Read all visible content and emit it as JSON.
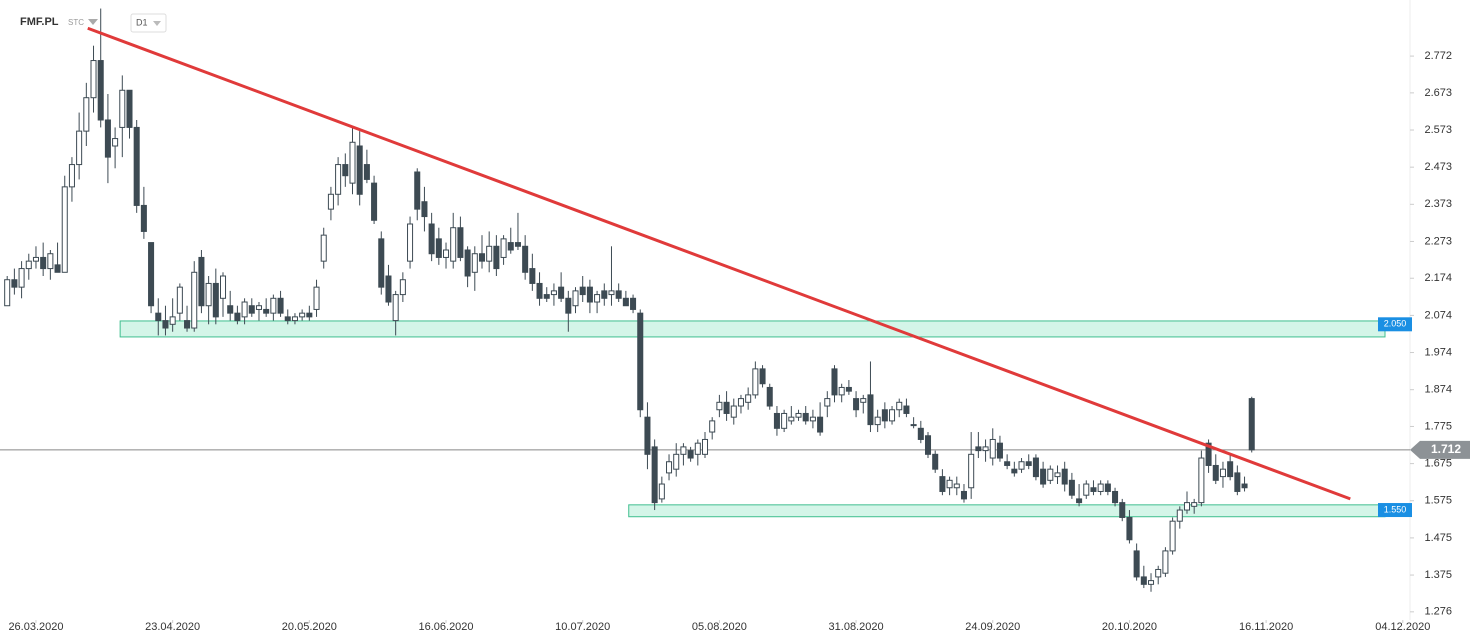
{
  "header": {
    "symbol": "FMF.PL",
    "mode": "STC",
    "interval": "D1"
  },
  "chart_data": {
    "type": "candlestick",
    "grid": false,
    "up_color": "#ffffff",
    "down_color": "#3d4a53",
    "wick_color": "#3d4a53",
    "xlim": [
      -1,
      195
    ],
    "ylim": [
      1.254,
      2.923
    ],
    "xticks": [
      {
        "value": 4,
        "label": "26.03.2020"
      },
      {
        "value": 23,
        "label": "23.04.2020"
      },
      {
        "value": 42,
        "label": "20.05.2020"
      },
      {
        "value": 61,
        "label": "16.06.2020"
      },
      {
        "value": 80,
        "label": "10.07.2020"
      },
      {
        "value": 99,
        "label": "05.08.2020"
      },
      {
        "value": 118,
        "label": "31.08.2020"
      },
      {
        "value": 137,
        "label": "24.09.2020"
      },
      {
        "value": 156,
        "label": "20.10.2020"
      },
      {
        "value": 175,
        "label": "16.11.2020"
      },
      {
        "value": 194,
        "label": "04.12.2020"
      }
    ],
    "yticks": [
      2.772,
      2.673,
      2.573,
      2.473,
      2.373,
      2.273,
      2.174,
      2.074,
      1.974,
      1.874,
      1.775,
      1.675,
      1.575,
      1.475,
      1.375,
      1.276
    ],
    "open": [
      2.1,
      2.17,
      2.15,
      2.2,
      2.22,
      2.23,
      2.2,
      2.21,
      2.19,
      2.42,
      2.48,
      2.57,
      2.66,
      2.76,
      2.6,
      2.53,
      2.58,
      2.68,
      2.58,
      2.37,
      2.27,
      2.08,
      2.06,
      2.05,
      2.08,
      2.06,
      2.04,
      2.23,
      2.1,
      2.16,
      2.12,
      2.1,
      2.08,
      2.07,
      2.1,
      2.09,
      2.09,
      2.08,
      2.12,
      2.07,
      2.06,
      2.07,
      2.08,
      2.09,
      2.22,
      2.36,
      2.4,
      2.48,
      2.43,
      2.53,
      2.48,
      2.43,
      2.28,
      2.18,
      2.06,
      2.13,
      2.22,
      2.46,
      2.38,
      2.32,
      2.28,
      2.23,
      2.22,
      2.31,
      2.25,
      2.19,
      2.24,
      2.22,
      2.26,
      2.23,
      2.27,
      2.27,
      2.26,
      2.2,
      2.16,
      2.13,
      2.13,
      2.15,
      2.12,
      2.1,
      2.15,
      2.15,
      2.11,
      2.14,
      2.13,
      2.14,
      2.12,
      2.12,
      2.08,
      1.8,
      1.72,
      1.58,
      1.65,
      1.66,
      1.7,
      1.71,
      1.7,
      1.7,
      1.76,
      1.82,
      1.84,
      1.8,
      1.83,
      1.84,
      1.86,
      1.93,
      1.88,
      1.81,
      1.77,
      1.79,
      1.8,
      1.81,
      1.79,
      1.8,
      1.83,
      1.93,
      1.86,
      1.88,
      1.85,
      1.84,
      1.86,
      1.78,
      1.82,
      1.79,
      1.82,
      1.83,
      1.78,
      1.77,
      1.75,
      1.7,
      1.64,
      1.61,
      1.61,
      1.6,
      1.61,
      1.72,
      1.71,
      1.69,
      1.73,
      1.68,
      1.66,
      1.66,
      1.68,
      1.69,
      1.66,
      1.63,
      1.64,
      1.66,
      1.63,
      1.58,
      1.59,
      1.61,
      1.6,
      1.62,
      1.6,
      1.57,
      1.53,
      1.44,
      1.37,
      1.35,
      1.37,
      1.38,
      1.44,
      1.52,
      1.55,
      1.56,
      1.57,
      1.73,
      1.67,
      1.64,
      1.68,
      1.65,
      1.62,
      1.85
    ],
    "high": [
      2.18,
      2.2,
      2.22,
      2.24,
      2.26,
      2.27,
      2.25,
      2.27,
      2.45,
      2.5,
      2.62,
      2.7,
      2.8,
      2.9,
      2.67,
      2.58,
      2.72,
      2.68,
      2.6,
      2.42,
      2.27,
      2.12,
      2.1,
      2.12,
      2.16,
      2.1,
      2.22,
      2.25,
      2.18,
      2.2,
      2.19,
      2.14,
      2.1,
      2.12,
      2.12,
      2.11,
      2.12,
      2.13,
      2.14,
      2.09,
      2.08,
      2.09,
      2.1,
      2.17,
      2.31,
      2.42,
      2.5,
      2.51,
      2.58,
      2.57,
      2.52,
      2.45,
      2.3,
      2.21,
      2.14,
      2.19,
      2.34,
      2.47,
      2.42,
      2.35,
      2.31,
      2.27,
      2.35,
      2.34,
      2.26,
      2.26,
      2.29,
      2.3,
      2.29,
      2.29,
      2.31,
      2.35,
      2.29,
      2.24,
      2.19,
      2.15,
      2.16,
      2.19,
      2.14,
      2.15,
      2.18,
      2.17,
      2.14,
      2.16,
      2.26,
      2.16,
      2.14,
      2.13,
      2.09,
      1.84,
      1.74,
      1.64,
      1.7,
      1.73,
      1.73,
      1.72,
      1.74,
      1.76,
      1.8,
      1.86,
      1.87,
      1.85,
      1.86,
      1.88,
      1.95,
      1.94,
      1.89,
      1.83,
      1.82,
      1.83,
      1.82,
      1.83,
      1.82,
      1.84,
      1.87,
      1.94,
      1.89,
      1.9,
      1.87,
      1.86,
      1.95,
      1.82,
      1.84,
      1.83,
      1.85,
      1.85,
      1.8,
      1.79,
      1.76,
      1.71,
      1.66,
      1.64,
      1.64,
      1.62,
      1.76,
      1.76,
      1.74,
      1.77,
      1.75,
      1.7,
      1.68,
      1.69,
      1.7,
      1.7,
      1.68,
      1.67,
      1.67,
      1.68,
      1.65,
      1.62,
      1.63,
      1.63,
      1.63,
      1.63,
      1.61,
      1.58,
      1.55,
      1.46,
      1.4,
      1.38,
      1.4,
      1.45,
      1.53,
      1.56,
      1.6,
      1.58,
      1.71,
      1.74,
      1.7,
      1.68,
      1.7,
      1.67,
      1.64,
      1.855
    ],
    "low": [
      2.1,
      2.13,
      2.12,
      2.17,
      2.2,
      2.18,
      2.17,
      2.19,
      2.19,
      2.38,
      2.44,
      2.53,
      2.62,
      2.58,
      2.43,
      2.47,
      2.5,
      2.55,
      2.35,
      2.28,
      2.08,
      2.02,
      2.02,
      2.03,
      2.06,
      2.03,
      2.03,
      2.08,
      2.05,
      2.05,
      2.07,
      2.06,
      2.05,
      2.05,
      2.07,
      2.06,
      2.07,
      2.06,
      2.07,
      2.05,
      2.05,
      2.06,
      2.06,
      2.07,
      2.2,
      2.33,
      2.37,
      2.42,
      2.4,
      2.37,
      2.43,
      2.32,
      2.13,
      2.1,
      2.02,
      2.11,
      2.2,
      2.33,
      2.3,
      2.22,
      2.21,
      2.2,
      2.2,
      2.22,
      2.15,
      2.14,
      2.2,
      2.19,
      2.18,
      2.21,
      2.24,
      2.25,
      2.17,
      2.14,
      2.1,
      2.11,
      2.1,
      2.11,
      2.03,
      2.08,
      2.11,
      2.08,
      2.08,
      2.1,
      2.1,
      2.11,
      2.1,
      2.08,
      1.8,
      1.66,
      1.55,
      1.57,
      1.63,
      1.64,
      1.67,
      1.68,
      1.67,
      1.69,
      1.74,
      1.8,
      1.79,
      1.78,
      1.81,
      1.82,
      1.85,
      1.88,
      1.82,
      1.75,
      1.76,
      1.78,
      1.79,
      1.78,
      1.77,
      1.75,
      1.8,
      1.84,
      1.84,
      1.86,
      1.8,
      1.81,
      1.76,
      1.76,
      1.77,
      1.78,
      1.8,
      1.8,
      1.77,
      1.73,
      1.69,
      1.65,
      1.59,
      1.59,
      1.59,
      1.57,
      1.58,
      1.69,
      1.68,
      1.67,
      1.68,
      1.66,
      1.64,
      1.65,
      1.66,
      1.63,
      1.61,
      1.62,
      1.62,
      1.6,
      1.58,
      1.56,
      1.58,
      1.59,
      1.59,
      1.59,
      1.56,
      1.52,
      1.46,
      1.36,
      1.34,
      1.33,
      1.35,
      1.37,
      1.43,
      1.5,
      1.54,
      1.54,
      1.56,
      1.65,
      1.62,
      1.61,
      1.63,
      1.59,
      1.6,
      1.705
    ],
    "close": [
      2.17,
      2.15,
      2.2,
      2.22,
      2.23,
      2.2,
      2.24,
      2.19,
      2.42,
      2.48,
      2.57,
      2.66,
      2.76,
      2.6,
      2.5,
      2.55,
      2.68,
      2.58,
      2.37,
      2.3,
      2.1,
      2.06,
      2.04,
      2.07,
      2.15,
      2.04,
      2.19,
      2.1,
      2.16,
      2.07,
      2.18,
      2.08,
      2.06,
      2.11,
      2.08,
      2.1,
      2.08,
      2.12,
      2.08,
      2.06,
      2.07,
      2.08,
      2.07,
      2.15,
      2.29,
      2.4,
      2.48,
      2.45,
      2.54,
      2.4,
      2.44,
      2.33,
      2.15,
      2.11,
      2.13,
      2.17,
      2.32,
      2.36,
      2.34,
      2.24,
      2.23,
      2.25,
      2.31,
      2.23,
      2.18,
      2.24,
      2.22,
      2.26,
      2.2,
      2.28,
      2.25,
      2.26,
      2.19,
      2.16,
      2.12,
      2.12,
      2.14,
      2.12,
      2.08,
      2.14,
      2.13,
      2.11,
      2.13,
      2.12,
      2.14,
      2.12,
      2.1,
      2.09,
      1.82,
      1.7,
      1.57,
      1.62,
      1.68,
      1.7,
      1.72,
      1.69,
      1.73,
      1.74,
      1.79,
      1.84,
      1.81,
      1.83,
      1.85,
      1.86,
      1.93,
      1.89,
      1.83,
      1.77,
      1.81,
      1.8,
      1.81,
      1.79,
      1.8,
      1.76,
      1.85,
      1.86,
      1.88,
      1.87,
      1.82,
      1.85,
      1.78,
      1.8,
      1.79,
      1.82,
      1.84,
      1.81,
      1.78,
      1.74,
      1.7,
      1.66,
      1.6,
      1.63,
      1.62,
      1.58,
      1.7,
      1.71,
      1.72,
      1.74,
      1.69,
      1.67,
      1.65,
      1.68,
      1.67,
      1.64,
      1.62,
      1.66,
      1.65,
      1.62,
      1.59,
      1.57,
      1.62,
      1.6,
      1.62,
      1.6,
      1.57,
      1.53,
      1.47,
      1.37,
      1.35,
      1.36,
      1.39,
      1.44,
      1.52,
      1.55,
      1.57,
      1.57,
      1.69,
      1.67,
      1.63,
      1.66,
      1.64,
      1.6,
      1.61,
      1.712
    ],
    "last_price": {
      "value": 1.712,
      "label": "1.712"
    },
    "zones": [
      {
        "value": 2.05,
        "label": "2.050",
        "low": 2.016,
        "high": 2.059,
        "start": 15.7
      },
      {
        "value": 1.55,
        "label": "1.550",
        "low": 1.532,
        "high": 1.564,
        "start": 86.4
      }
    ],
    "trendline": {
      "x": [
        11.2,
        186.7
      ],
      "y": [
        2.847,
        1.58
      ],
      "color": "#e03a3a"
    }
  }
}
